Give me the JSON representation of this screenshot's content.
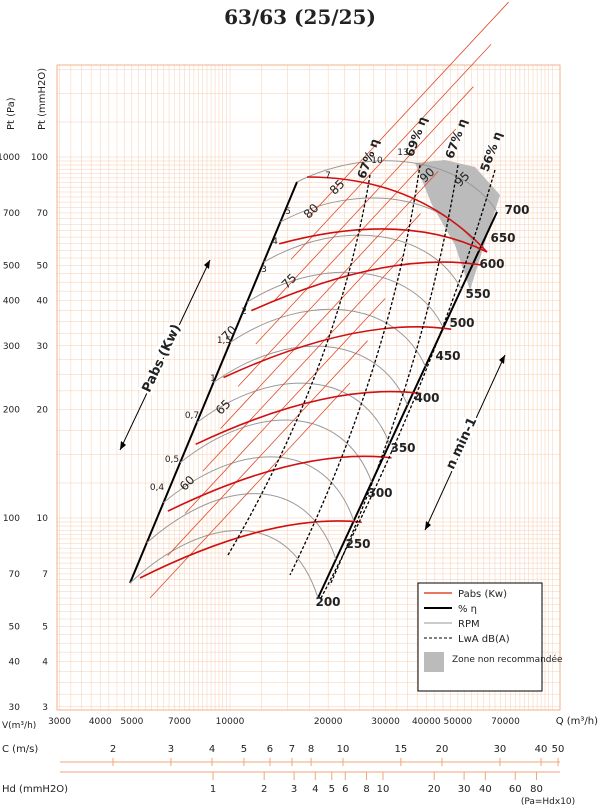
{
  "title": "63/63 (25/25)",
  "y_axis": {
    "label_pa": "Pt (Pa)",
    "label_mm": "Pt (mmH2O)",
    "ticks_pa": [
      1000,
      700,
      500,
      400,
      300,
      200,
      100,
      70,
      50,
      40,
      30
    ],
    "ticks_mm": [
      100,
      70,
      50,
      40,
      30,
      20,
      10,
      7,
      5,
      4,
      3
    ]
  },
  "x_axis": {
    "label_v": "V(m³/h)",
    "label_q": "Q (m³/h)",
    "ticks": [
      3000,
      4000,
      5000,
      7000,
      10000,
      20000,
      30000,
      40000,
      50000,
      70000
    ]
  },
  "c_axis": {
    "label": "C (m/s)",
    "ticks": [
      2,
      3,
      4,
      5,
      6,
      7,
      8,
      10,
      15,
      20,
      30,
      40,
      50
    ]
  },
  "hd_axis": {
    "label": "Hd (mmH2O)",
    "ticks": [
      1,
      2,
      3,
      4,
      5,
      6,
      8,
      10,
      20,
      30,
      40,
      60,
      80
    ],
    "note": "(Pa=Hdx10)"
  },
  "rpm_labels": [
    200,
    250,
    300,
    350,
    400,
    450,
    500,
    550,
    600,
    650,
    700
  ],
  "pabs_labels": [
    "0,4",
    "0,5",
    "0,7",
    "1",
    "1,5",
    "2",
    "3",
    "4",
    "5",
    "7",
    "10",
    "13"
  ],
  "efficiency_labels": [
    "67% η",
    "69% η",
    "67% η",
    "56% η"
  ],
  "lwa_labels": [
    60,
    65,
    70,
    75,
    80,
    85,
    90,
    95
  ],
  "arrow_labels": {
    "pabs": "Pabs (Kw)",
    "rpm": "n  min-1"
  },
  "legend": [
    "Pabs (Kw)",
    "% η",
    "RPM",
    "LwA dB(A)",
    "Zone non recommandée"
  ]
}
